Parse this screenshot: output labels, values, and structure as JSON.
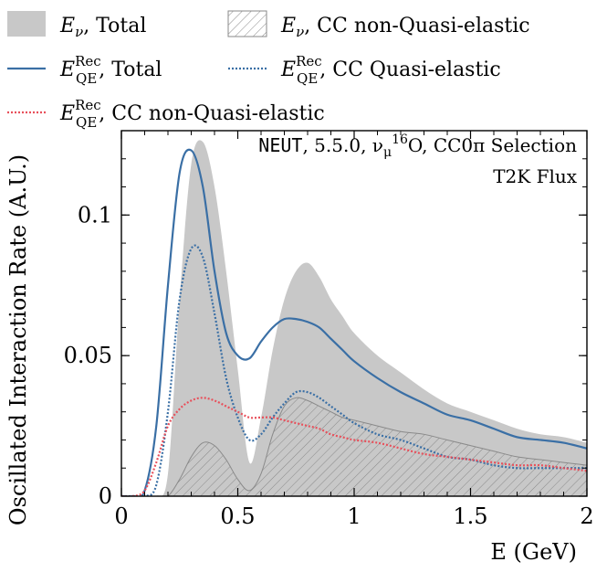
{
  "chart_data": {
    "type": "area",
    "xlabel": "E (GeV)",
    "ylabel": "Oscillated Interaction Rate (A.U.)",
    "xlim": [
      0,
      2
    ],
    "ylim": [
      0,
      0.13
    ],
    "xticks": [
      0,
      0.5,
      1,
      1.5,
      2
    ],
    "xtick_labels": [
      "0",
      "0.5",
      "1",
      "1.5",
      "2"
    ],
    "yticks": [
      0,
      0.05,
      0.1
    ],
    "ytick_labels": [
      "0",
      "0.05",
      "0.1"
    ],
    "annotations": {
      "generator": "NEUT",
      "selection": ", 5.5.0, ν",
      "mu": "μ",
      "mass": "16",
      "target": "O, CC0π Selection",
      "flux": "T2K Flux"
    },
    "legend_position": "top, outside the axes",
    "legend": [
      {
        "key": "enu_total",
        "label": ", Total",
        "sym": "E",
        "sub": "ν",
        "sup": "",
        "style": "fill",
        "color": "#c8c8c8"
      },
      {
        "key": "enu_ccnonqe",
        "label": ", CC non-Quasi-elastic",
        "sym": "E",
        "sub": "ν",
        "sup": "",
        "style": "hatch",
        "color": "#9a9a9a"
      },
      {
        "key": "erec_total",
        "label": ", Total",
        "sym": "E",
        "sub": "QE",
        "sup": "Rec",
        "style": "solid",
        "color": "#3a6fa5"
      },
      {
        "key": "erec_ccqe",
        "label": ", CC Quasi-elastic",
        "sym": "E",
        "sub": "QE",
        "sup": "Rec",
        "style": "dotted",
        "color": "#3a6fa5"
      },
      {
        "key": "erec_ccnonqe",
        "label": ", CC non-Quasi-elastic",
        "sym": "E",
        "sub": "QE",
        "sup": "Rec",
        "style": "dotted",
        "color": "#e8505b"
      }
    ],
    "x": [
      0,
      0.05,
      0.1,
      0.15,
      0.2,
      0.25,
      0.3,
      0.35,
      0.4,
      0.45,
      0.5,
      0.55,
      0.6,
      0.65,
      0.7,
      0.75,
      0.8,
      0.85,
      0.9,
      0.95,
      1.0,
      1.1,
      1.2,
      1.3,
      1.4,
      1.5,
      1.6,
      1.7,
      1.8,
      1.9,
      2.0
    ],
    "series": [
      {
        "name": "E_ν, Total",
        "values": [
          0,
          0,
          0,
          0,
          0.008,
          0.07,
          0.118,
          0.126,
          0.11,
          0.08,
          0.045,
          0.012,
          0.028,
          0.052,
          0.07,
          0.08,
          0.083,
          0.078,
          0.07,
          0.064,
          0.058,
          0.05,
          0.044,
          0.038,
          0.033,
          0.03,
          0.027,
          0.024,
          0.022,
          0.021,
          0.019
        ]
      },
      {
        "name": "E_ν, CC non-Quasi-elastic",
        "values": [
          0,
          0,
          0,
          0,
          0,
          0.006,
          0.014,
          0.019,
          0.018,
          0.013,
          0.006,
          0.002,
          0.008,
          0.022,
          0.032,
          0.035,
          0.034,
          0.032,
          0.03,
          0.028,
          0.027,
          0.025,
          0.023,
          0.022,
          0.02,
          0.018,
          0.016,
          0.014,
          0.013,
          0.012,
          0.011
        ]
      },
      {
        "name": "E_QE^Rec, Total",
        "values": [
          0,
          0,
          0.002,
          0.025,
          0.075,
          0.115,
          0.123,
          0.11,
          0.08,
          0.058,
          0.05,
          0.049,
          0.055,
          0.06,
          0.063,
          0.063,
          0.062,
          0.06,
          0.056,
          0.052,
          0.048,
          0.042,
          0.037,
          0.033,
          0.029,
          0.027,
          0.024,
          0.021,
          0.02,
          0.019,
          0.017
        ]
      },
      {
        "name": "E_QE^Rec, CC Quasi-elastic",
        "values": [
          0,
          0,
          0,
          0.004,
          0.03,
          0.07,
          0.088,
          0.085,
          0.065,
          0.042,
          0.028,
          0.02,
          0.022,
          0.028,
          0.033,
          0.037,
          0.037,
          0.035,
          0.032,
          0.029,
          0.026,
          0.022,
          0.02,
          0.017,
          0.014,
          0.013,
          0.011,
          0.01,
          0.01,
          0.01,
          0.01
        ]
      },
      {
        "name": "E_QE^Rec, CC non-Quasi-elastic",
        "values": [
          0,
          0,
          0.002,
          0.012,
          0.025,
          0.031,
          0.034,
          0.035,
          0.034,
          0.032,
          0.03,
          0.028,
          0.028,
          0.028,
          0.027,
          0.026,
          0.025,
          0.024,
          0.022,
          0.021,
          0.02,
          0.019,
          0.017,
          0.015,
          0.014,
          0.013,
          0.012,
          0.011,
          0.011,
          0.01,
          0.009
        ]
      }
    ]
  }
}
